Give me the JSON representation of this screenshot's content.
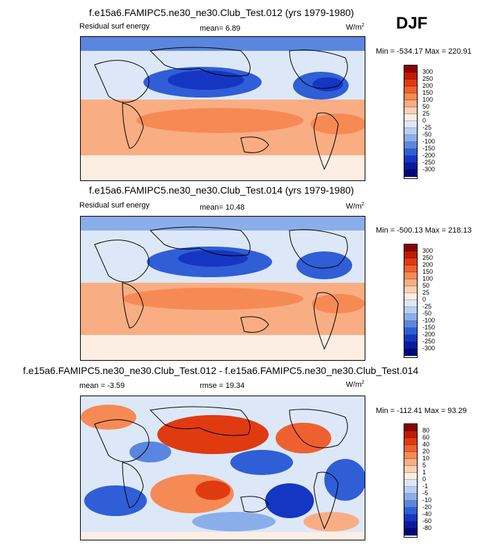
{
  "season": "DJF",
  "panel1": {
    "title": "f.e15a6.FAMIPC5.ne30_ne30.Club_Test.012 (yrs 1979-1980)",
    "variable": "Residual surf energy",
    "mean_label": "mean=",
    "mean_value": "6.89",
    "units": "W/m",
    "units_sup": "2",
    "minmax": "Min = -534.17 Max = 220.91"
  },
  "panel2": {
    "title": "f.e15a6.FAMIPC5.ne30_ne30.Club_Test.014 (yrs 1979-1980)",
    "variable": "Residual surf energy",
    "mean_label": "mean=",
    "mean_value": "10.48",
    "units": "W/m",
    "units_sup": "2",
    "minmax": "Min = -500.13 Max = 218.13"
  },
  "panel3": {
    "title": "f.e15a6.FAMIPC5.ne30_ne30.Club_Test.012 - f.e15a6.FAMIPC5.ne30_ne30.Club_Test.014",
    "mean_label": "mean =",
    "mean_value": "-3.59",
    "rmse_label": "rmse =",
    "rmse_value": "19.34",
    "units": "W/m",
    "units_sup": "2",
    "minmax": "Min = -112.41 Max = 93.29"
  },
  "chart_data": [
    {
      "type": "heatmap",
      "title": "f.e15a6.FAMIPC5.ne30_ne30.Club_Test.012 (yrs 1979-1980)",
      "variable": "Residual surf energy",
      "mean": 6.89,
      "min": -534.17,
      "max": 220.91,
      "colorbar_levels": [
        "300",
        "250",
        "200",
        "150",
        "100",
        "50",
        "25",
        "0",
        "-25",
        "-50",
        "-100",
        "-150",
        "-200",
        "-250",
        "-300"
      ]
    },
    {
      "type": "heatmap",
      "title": "f.e15a6.FAMIPC5.ne30_ne30.Club_Test.014 (yrs 1979-1980)",
      "variable": "Residual surf energy",
      "mean": 10.48,
      "min": -500.13,
      "max": 218.13,
      "colorbar_levels": [
        "300",
        "250",
        "200",
        "150",
        "100",
        "50",
        "25",
        "0",
        "-25",
        "-50",
        "-100",
        "-150",
        "-200",
        "-250",
        "-300"
      ]
    },
    {
      "type": "heatmap",
      "title": "f.e15a6.FAMIPC5.ne30_ne30.Club_Test.012 - f.e15a6.FAMIPC5.ne30_ne30.Club_Test.014",
      "mean": -3.59,
      "rmse": 19.34,
      "min": -112.41,
      "max": 93.29,
      "colorbar_levels": [
        "80",
        "60",
        "40",
        "20",
        "10",
        "5",
        "1",
        "0",
        "-1",
        "-5",
        "-10",
        "-20",
        "-40",
        "-60",
        "-80"
      ]
    }
  ],
  "colorbar_colors": [
    "#8b0000",
    "#c01a00",
    "#e03a10",
    "#ef6030",
    "#f68a55",
    "#f9ad82",
    "#fbd0b5",
    "#fdeee3",
    "#dce8f8",
    "#b7cff2",
    "#8aaee9",
    "#5a86e0",
    "#2f5ed6",
    "#1536c2",
    "#0a1a9e",
    "#00087a"
  ]
}
